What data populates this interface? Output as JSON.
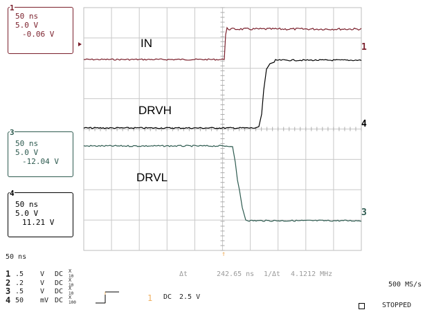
{
  "channel_boxes": [
    {
      "num": "1",
      "timebase": "50 ns",
      "volts": "5.0 V",
      "offset": "-0.06 V",
      "color": "#7a1f2b"
    },
    {
      "num": "3",
      "timebase": "50 ns",
      "volts": "5.0 V",
      "offset": "-12.04 V",
      "color": "#2d5a4f"
    },
    {
      "num": "4",
      "timebase": "50 ns",
      "volts": "5.0 V",
      "offset": "11.21 V",
      "color": "#000000"
    }
  ],
  "trace_labels": {
    "in": "IN",
    "drvh": "DRVH",
    "drvl": "DRVL"
  },
  "right_markers": {
    "ch1": "1",
    "ch4": "4",
    "ch3": "3"
  },
  "timebase": "50 ns",
  "channel_rows": [
    {
      "num": "1",
      "volts": ".5",
      "unit": "V",
      "coupling": "DC",
      "probe_top": "X",
      "probe_bottom": "10"
    },
    {
      "num": "2",
      "volts": ".2",
      "unit": "V",
      "coupling": "DC",
      "probe_top": "X",
      "probe_bottom": "10"
    },
    {
      "num": "3",
      "volts": ".5",
      "unit": "V",
      "coupling": "DC",
      "probe_top": "X",
      "probe_bottom": "10"
    },
    {
      "num": "4",
      "volts": "50",
      "unit": "mV",
      "coupling": "DC",
      "probe_top": "X",
      "probe_bottom": "100"
    }
  ],
  "measurement": {
    "delta_t_label": "Δt",
    "delta_t_value": "242.65 ns",
    "freq_label": "1/Δt",
    "freq_value": "4.1212 MHz"
  },
  "trigger": {
    "channel": "1",
    "coupling": "DC",
    "level": "2.5 V"
  },
  "sample_rate": "500 MS/s",
  "acq_status": "STOPPED",
  "colors": {
    "ch1": "#7a1f2b",
    "ch3": "#2d5a4f",
    "ch4": "#000000",
    "grid": "#c8c8c8",
    "cursor": "#f0b060"
  }
}
